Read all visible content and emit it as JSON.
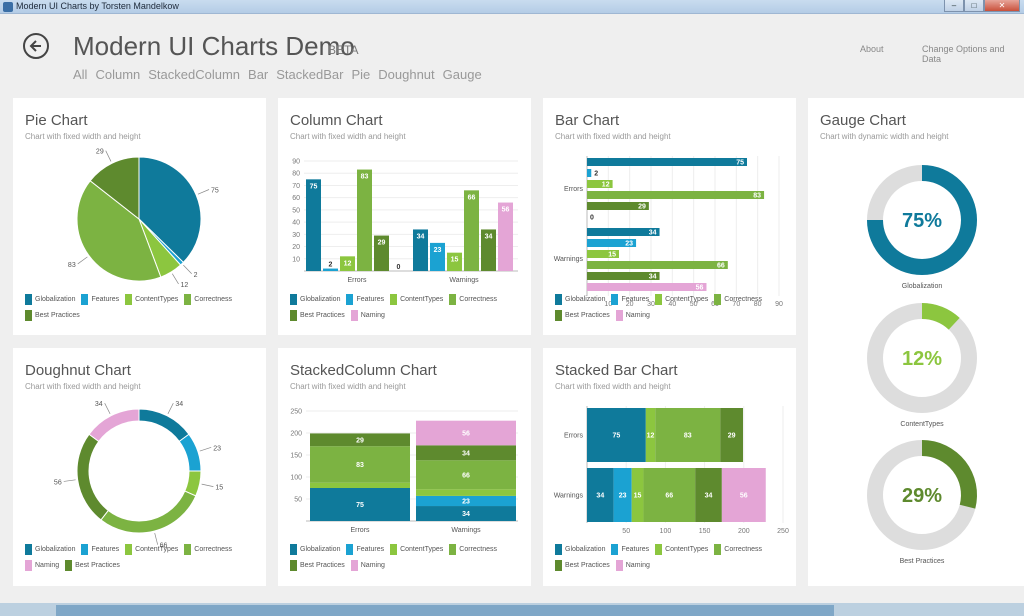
{
  "window": {
    "title": "Modern UI Charts by Torsten Mandelkow"
  },
  "header": {
    "title": "Modern UI Charts Demo",
    "badge": "BETA",
    "about": "About",
    "change_options": "Change Options and Data"
  },
  "filters": [
    "All",
    "Column",
    "StackedColumn",
    "Bar",
    "StackedBar",
    "Pie",
    "Doughnut",
    "Gauge"
  ],
  "colors": {
    "Globalization": "#0f7a9b",
    "Features": "#1ba2d2",
    "ContentTypes": "#8cc63f",
    "Correctness": "#7cb342",
    "Best Practices": "#5e8a2e",
    "Naming": "#e4a5d6"
  },
  "panels": {
    "pie": {
      "title": "Pie Chart",
      "subtitle": "Chart with fixed width and height"
    },
    "column": {
      "title": "Column Chart",
      "subtitle": "Chart with fixed width and height"
    },
    "bar": {
      "title": "Bar Chart",
      "subtitle": "Chart with fixed width and height"
    },
    "gauge": {
      "title": "Gauge Chart",
      "subtitle": "Chart with dynamic width and height"
    },
    "doughnut": {
      "title": "Doughnut Chart",
      "subtitle": "Chart with fixed width and height"
    },
    "stacked_column": {
      "title": "StackedColumn Chart",
      "subtitle": "Chart with fixed width and height"
    },
    "stacked_bar": {
      "title": "Stacked Bar Chart",
      "subtitle": "Chart with fixed width and height"
    }
  },
  "legends": {
    "pie": [
      "Globalization",
      "Features",
      "ContentTypes",
      "Correctness",
      "Best Practices"
    ],
    "full": [
      "Globalization",
      "Features",
      "ContentTypes",
      "Correctness",
      "Best Practices",
      "Naming"
    ],
    "doughnut": [
      "Globalization",
      "Features",
      "ContentTypes",
      "Correctness",
      "Naming",
      "Best Practices"
    ]
  },
  "chart_data": [
    {
      "id": "pie",
      "type": "pie",
      "series": [
        {
          "name": "Globalization",
          "value": 75
        },
        {
          "name": "Features",
          "value": 2
        },
        {
          "name": "ContentTypes",
          "value": 12
        },
        {
          "name": "Correctness",
          "value": 83
        },
        {
          "name": "Best Practices",
          "value": 29
        }
      ]
    },
    {
      "id": "column",
      "type": "bar",
      "categories": [
        "Errors",
        "Warnings"
      ],
      "series": [
        {
          "name": "Globalization",
          "values": [
            75,
            34
          ]
        },
        {
          "name": "Features",
          "values": [
            2,
            23
          ]
        },
        {
          "name": "ContentTypes",
          "values": [
            12,
            15
          ]
        },
        {
          "name": "Correctness",
          "values": [
            83,
            66
          ]
        },
        {
          "name": "Best Practices",
          "values": [
            29,
            34
          ]
        },
        {
          "name": "Naming",
          "values": [
            0,
            56
          ]
        }
      ],
      "ylim": [
        0,
        90
      ],
      "yticks": [
        10,
        20,
        30,
        40,
        50,
        60,
        70,
        80,
        90
      ]
    },
    {
      "id": "bar",
      "type": "bar",
      "orientation": "horizontal",
      "categories": [
        "Errors",
        "Warnings"
      ],
      "series": [
        {
          "name": "Globalization",
          "values": [
            75,
            34
          ]
        },
        {
          "name": "Features",
          "values": [
            2,
            23
          ]
        },
        {
          "name": "ContentTypes",
          "values": [
            12,
            15
          ]
        },
        {
          "name": "Correctness",
          "values": [
            83,
            66
          ]
        },
        {
          "name": "Best Practices",
          "values": [
            29,
            34
          ]
        },
        {
          "name": "Naming",
          "values": [
            0,
            56
          ]
        }
      ],
      "xlim": [
        0,
        90
      ],
      "xticks": [
        10,
        20,
        30,
        40,
        50,
        60,
        70,
        80,
        90
      ]
    },
    {
      "id": "gauge",
      "type": "pie",
      "subtype": "gauge",
      "items": [
        {
          "name": "Globalization",
          "value": 75,
          "label": "75%"
        },
        {
          "name": "ContentTypes",
          "value": 12,
          "label": "12%"
        },
        {
          "name": "Best Practices",
          "value": 29,
          "label": "29%"
        }
      ]
    },
    {
      "id": "doughnut",
      "type": "pie",
      "subtype": "doughnut",
      "series": [
        {
          "name": "Globalization",
          "value": 34
        },
        {
          "name": "Features",
          "value": 23
        },
        {
          "name": "ContentTypes",
          "value": 15
        },
        {
          "name": "Correctness",
          "value": 66
        },
        {
          "name": "Best Practices",
          "value": 56
        },
        {
          "name": "Naming",
          "value": 34
        }
      ]
    },
    {
      "id": "stacked_column",
      "type": "bar",
      "stacked": true,
      "categories": [
        "Errors",
        "Warnings"
      ],
      "series": [
        {
          "name": "Globalization",
          "values": [
            75,
            34
          ]
        },
        {
          "name": "Features",
          "values": [
            0,
            23
          ]
        },
        {
          "name": "ContentTypes",
          "values": [
            12,
            15
          ]
        },
        {
          "name": "Correctness",
          "values": [
            83,
            66
          ]
        },
        {
          "name": "Best Practices",
          "values": [
            29,
            34
          ]
        },
        {
          "name": "Naming",
          "values": [
            0,
            56
          ]
        }
      ],
      "ylim": [
        0,
        250
      ],
      "yticks": [
        50,
        100,
        150,
        200,
        250
      ]
    },
    {
      "id": "stacked_bar",
      "type": "bar",
      "stacked": true,
      "orientation": "horizontal",
      "categories": [
        "Errors",
        "Warnings"
      ],
      "series": [
        {
          "name": "Globalization",
          "values": [
            75,
            34
          ]
        },
        {
          "name": "Features",
          "values": [
            0,
            23
          ]
        },
        {
          "name": "ContentTypes",
          "values": [
            12,
            15
          ]
        },
        {
          "name": "Correctness",
          "values": [
            83,
            66
          ]
        },
        {
          "name": "Best Practices",
          "values": [
            29,
            34
          ]
        },
        {
          "name": "Naming",
          "values": [
            0,
            56
          ]
        }
      ],
      "xlim": [
        0,
        250
      ],
      "xticks": [
        50,
        100,
        150,
        200,
        250
      ]
    }
  ]
}
